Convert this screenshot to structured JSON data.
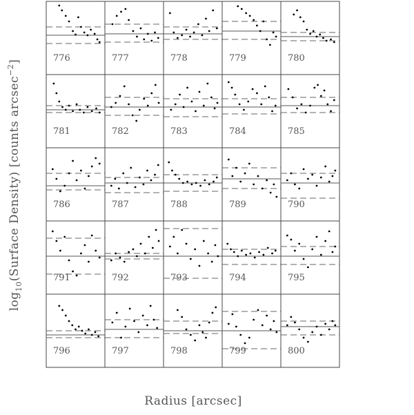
{
  "figure": {
    "xlabel": "Radius [arcsec]",
    "ylabel": [
      "log",
      "10",
      "(Surface Density) [counts arcsec",
      "−2",
      "]"
    ]
  },
  "chart_data": [
    {
      "type": "scatter",
      "title": "776",
      "xlim": [
        0,
        100
      ],
      "ylim": [
        0,
        100
      ],
      "x": [
        20,
        25,
        32,
        38,
        45,
        50,
        55,
        60,
        66,
        72,
        78,
        85,
        90,
        94
      ],
      "y": [
        97,
        90,
        82,
        74,
        60,
        55,
        80,
        66,
        58,
        54,
        62,
        56,
        48,
        44
      ],
      "mean": 54,
      "sigma": [
        42,
        66
      ]
    },
    {
      "type": "scatter",
      "title": "777",
      "xlim": [
        0,
        100
      ],
      "ylim": [
        0,
        100
      ],
      "x": [
        10,
        18,
        26,
        34,
        40,
        48,
        55,
        62,
        68,
        75,
        82,
        88,
        94
      ],
      "y": [
        70,
        82,
        88,
        92,
        76,
        60,
        52,
        64,
        48,
        56,
        46,
        58,
        50
      ],
      "mean": 56,
      "sigma": [
        44,
        70
      ]
    },
    {
      "type": "scatter",
      "title": "778",
      "xlim": [
        0,
        100
      ],
      "ylim": [
        0,
        100
      ],
      "x": [
        8,
        15,
        22,
        30,
        38,
        45,
        52,
        60,
        67,
        74,
        80,
        87,
        94
      ],
      "y": [
        86,
        58,
        50,
        54,
        62,
        52,
        58,
        70,
        54,
        78,
        60,
        90,
        64
      ],
      "mean": 56,
      "sigma": [
        48,
        66
      ]
    },
    {
      "type": "scatter",
      "title": "779",
      "xlim": [
        0,
        100
      ],
      "ylim": [
        0,
        100
      ],
      "x": [
        25,
        32,
        40,
        47,
        54,
        60,
        66,
        72,
        78,
        84,
        90,
        95
      ],
      "y": [
        96,
        92,
        86,
        82,
        76,
        68,
        60,
        74,
        48,
        40,
        58,
        52
      ],
      "mean": 60,
      "sigma": [
        48,
        74
      ]
    },
    {
      "type": "scatter",
      "title": "780",
      "xlim": [
        0,
        100
      ],
      "ylim": [
        0,
        100
      ],
      "x": [
        20,
        26,
        32,
        38,
        44,
        50,
        56,
        62,
        68,
        74,
        80,
        88,
        94
      ],
      "y": [
        84,
        90,
        80,
        74,
        62,
        56,
        60,
        52,
        55,
        50,
        46,
        48,
        44
      ],
      "mean": 52,
      "sigma": [
        46,
        58
      ]
    },
    {
      "type": "scatter",
      "title": "781",
      "xlim": [
        0,
        100
      ],
      "ylim": [
        0,
        100
      ],
      "x": [
        10,
        15,
        20,
        26,
        32,
        38,
        45,
        52,
        58,
        65,
        72,
        80,
        88,
        94
      ],
      "y": [
        90,
        76,
        64,
        56,
        52,
        58,
        50,
        60,
        52,
        48,
        56,
        50,
        54,
        48
      ],
      "mean": 52,
      "sigma": [
        48,
        58
      ]
    },
    {
      "type": "scatter",
      "title": "782",
      "xlim": [
        0,
        100
      ],
      "ylim": [
        0,
        100
      ],
      "x": [
        8,
        16,
        24,
        32,
        40,
        47,
        54,
        60,
        68,
        75,
        82,
        89,
        95
      ],
      "y": [
        56,
        62,
        72,
        86,
        60,
        44,
        36,
        52,
        68,
        58,
        76,
        88,
        62
      ],
      "mean": 56,
      "sigma": [
        44,
        70
      ]
    },
    {
      "type": "scatter",
      "title": "783",
      "xlim": [
        0,
        100
      ],
      "ylim": [
        0,
        100
      ],
      "x": [
        10,
        18,
        26,
        33,
        40,
        48,
        55,
        62,
        70,
        77,
        84,
        90,
        95
      ],
      "y": [
        52,
        60,
        74,
        56,
        84,
        64,
        50,
        78,
        58,
        90,
        70,
        54,
        62
      ],
      "mean": 56,
      "sigma": [
        42,
        68
      ]
    },
    {
      "type": "scatter",
      "title": "784",
      "xlim": [
        0,
        100
      ],
      "ylim": [
        0,
        100
      ],
      "x": [
        8,
        14,
        20,
        28,
        36,
        44,
        52,
        60,
        68,
        75,
        82,
        88,
        94
      ],
      "y": [
        92,
        84,
        74,
        60,
        52,
        64,
        82,
        76,
        60,
        86,
        70,
        50,
        58
      ],
      "mean": 56,
      "sigma": [
        46,
        68
      ]
    },
    {
      "type": "scatter",
      "title": "785",
      "xlim": [
        0,
        100
      ],
      "ylim": [
        0,
        100
      ],
      "x": [
        10,
        18,
        26,
        34,
        42,
        50,
        58,
        64,
        70,
        76,
        82,
        88,
        94
      ],
      "y": [
        82,
        70,
        54,
        60,
        48,
        58,
        84,
        88,
        72,
        80,
        60,
        50,
        66
      ],
      "mean": 58,
      "sigma": [
        48,
        70
      ]
    },
    {
      "type": "scatter",
      "title": "786",
      "xlim": [
        0,
        100
      ],
      "ylim": [
        0,
        100
      ],
      "x": [
        8,
        15,
        22,
        30,
        38,
        45,
        52,
        60,
        67,
        74,
        80,
        87,
        94
      ],
      "y": [
        72,
        58,
        40,
        48,
        66,
        84,
        56,
        70,
        44,
        62,
        76,
        88,
        80
      ],
      "mean": 48,
      "sigma": [
        42,
        66
      ]
    },
    {
      "type": "scatter",
      "title": "787",
      "xlim": [
        0,
        100
      ],
      "ylim": [
        0,
        100
      ],
      "x": [
        8,
        15,
        22,
        30,
        37,
        44,
        52,
        60,
        67,
        74,
        81,
        88,
        94
      ],
      "y": [
        48,
        58,
        44,
        66,
        52,
        74,
        46,
        60,
        50,
        70,
        56,
        64,
        78
      ],
      "mean": 52,
      "sigma": [
        38,
        60
      ]
    },
    {
      "type": "scatter",
      "title": "788",
      "xlim": [
        0,
        100
      ],
      "ylim": [
        0,
        100
      ],
      "x": [
        6,
        12,
        18,
        25,
        32,
        40,
        48,
        56,
        64,
        72,
        80,
        88,
        94
      ],
      "y": [
        82,
        70,
        64,
        58,
        52,
        54,
        50,
        52,
        48,
        56,
        50,
        54,
        60
      ],
      "mean": 52,
      "sigma": [
        40,
        64
      ]
    },
    {
      "type": "scatter",
      "title": "789",
      "xlim": [
        0,
        100
      ],
      "ylim": [
        0,
        100
      ],
      "x": [
        8,
        15,
        22,
        30,
        38,
        46,
        54,
        62,
        70,
        78,
        85,
        91,
        96
      ],
      "y": [
        86,
        62,
        74,
        54,
        66,
        80,
        50,
        62,
        44,
        56,
        38,
        50,
        32
      ],
      "mean": 58,
      "sigma": [
        44,
        74
      ]
    },
    {
      "type": "scatter",
      "title": "790",
      "xlim": [
        0,
        100
      ],
      "ylim": [
        0,
        100
      ],
      "x": [
        8,
        15,
        22,
        30,
        38,
        46,
        54,
        62,
        70,
        78,
        85,
        91,
        96
      ],
      "y": [
        56,
        66,
        50,
        44,
        72,
        58,
        64,
        48,
        60,
        76,
        54,
        62,
        70
      ],
      "mean": 52,
      "sigma": [
        30,
        66
      ]
    },
    {
      "type": "scatter",
      "title": "791",
      "xlim": [
        0,
        100
      ],
      "ylim": [
        0,
        100
      ],
      "x": [
        8,
        15,
        22,
        30,
        38,
        45,
        52,
        60,
        67,
        74,
        80,
        87,
        94
      ],
      "y": [
        88,
        74,
        60,
        80,
        46,
        30,
        24,
        56,
        68,
        44,
        82,
        60,
        50
      ],
      "mean": 52,
      "sigma": [
        26,
        78
      ]
    },
    {
      "type": "scatter",
      "title": "792",
      "xlim": [
        0,
        100
      ],
      "ylim": [
        0,
        100
      ],
      "x": [
        8,
        16,
        24,
        32,
        40,
        48,
        55,
        62,
        70,
        77,
        84,
        90,
        95
      ],
      "y": [
        46,
        56,
        50,
        44,
        58,
        62,
        52,
        70,
        56,
        80,
        64,
        90,
        74
      ],
      "mean": 52,
      "sigma": [
        48,
        56
      ]
    },
    {
      "type": "scatter",
      "title": "793",
      "xlim": [
        0,
        100
      ],
      "ylim": [
        0,
        100
      ],
      "x": [
        8,
        15,
        22,
        30,
        38,
        46,
        54,
        62,
        70,
        78,
        85,
        91,
        96
      ],
      "y": [
        66,
        80,
        56,
        90,
        70,
        48,
        62,
        38,
        74,
        56,
        44,
        68,
        52
      ],
      "mean": 52,
      "sigma": [
        20,
        92
      ]
    },
    {
      "type": "scatter",
      "title": "794",
      "xlim": [
        0,
        100
      ],
      "ylim": [
        0,
        100
      ],
      "x": [
        6,
        12,
        18,
        25,
        32,
        40,
        48,
        56,
        64,
        72,
        80,
        88,
        94
      ],
      "y": [
        70,
        62,
        58,
        52,
        60,
        54,
        56,
        50,
        58,
        54,
        64,
        56,
        60
      ],
      "mean": 52,
      "sigma": [
        40,
        62
      ]
    },
    {
      "type": "scatter",
      "title": "795",
      "xlim": [
        0,
        100
      ],
      "ylim": [
        0,
        100
      ],
      "x": [
        8,
        15,
        22,
        30,
        38,
        46,
        54,
        62,
        70,
        78,
        85,
        91,
        96
      ],
      "y": [
        82,
        76,
        60,
        70,
        48,
        36,
        62,
        80,
        54,
        74,
        88,
        58,
        66
      ],
      "mean": 52,
      "sigma": [
        40,
        66
      ]
    },
    {
      "type": "scatter",
      "title": "796",
      "xlim": [
        0,
        100
      ],
      "ylim": [
        0,
        100
      ],
      "x": [
        20,
        26,
        32,
        38,
        44,
        50,
        56,
        62,
        68,
        74,
        80,
        86,
        92
      ],
      "y": [
        86,
        80,
        72,
        64,
        58,
        52,
        56,
        50,
        46,
        52,
        44,
        48,
        42
      ],
      "mean": 44,
      "sigma": [
        40,
        50
      ]
    },
    {
      "type": "scatter",
      "title": "797",
      "xlim": [
        0,
        100
      ],
      "ylim": [
        0,
        100
      ],
      "x": [
        10,
        18,
        26,
        34,
        42,
        50,
        58,
        66,
        74,
        80,
        86,
        92
      ],
      "y": [
        62,
        76,
        40,
        56,
        82,
        64,
        48,
        72,
        58,
        86,
        66,
        54
      ],
      "mean": 52,
      "sigma": [
        40,
        66
      ]
    },
    {
      "type": "scatter",
      "title": "798",
      "xlim": [
        0,
        100
      ],
      "ylim": [
        0,
        100
      ],
      "x": [
        22,
        30,
        38,
        46,
        54,
        62,
        68,
        74,
        80,
        86,
        92
      ],
      "y": [
        80,
        70,
        52,
        44,
        36,
        58,
        48,
        40,
        62,
        76,
        84
      ],
      "mean": 50,
      "sigma": [
        46,
        64
      ]
    },
    {
      "type": "scatter",
      "title": "799",
      "xlim": [
        0,
        100
      ],
      "ylim": [
        0,
        100
      ],
      "x": [
        8,
        15,
        22,
        30,
        38,
        46,
        54,
        62,
        70,
        78,
        85,
        91,
        96
      ],
      "y": [
        60,
        74,
        56,
        44,
        32,
        40,
        66,
        80,
        58,
        72,
        52,
        64,
        48
      ],
      "mean": 50,
      "sigma": [
        24,
        78
      ]
    },
    {
      "type": "scatter",
      "title": "800",
      "xlim": [
        0,
        100
      ],
      "ylim": [
        0,
        100
      ],
      "x": [
        8,
        15,
        22,
        30,
        38,
        46,
        54,
        62,
        70,
        78,
        85,
        91,
        96
      ],
      "y": [
        58,
        70,
        62,
        52,
        40,
        34,
        48,
        56,
        44,
        60,
        52,
        64,
        58
      ],
      "mean": 56,
      "sigma": [
        44,
        64
      ]
    }
  ]
}
